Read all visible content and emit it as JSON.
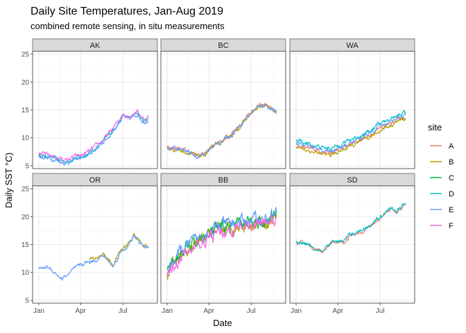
{
  "chart_data": {
    "type": "line",
    "title": "Daily Site Temperatures, Jan-Aug 2019",
    "subtitle": "combined remote sensing, in situ measurements",
    "xlabel": "Date",
    "ylabel": "Daily SST °C)",
    "x_range": [
      "2019-01-01",
      "2019-08-31"
    ],
    "ylim": [
      4.5,
      25.5
    ],
    "y_ticks": [
      5,
      10,
      15,
      20,
      25
    ],
    "x_ticks": [
      {
        "label": "Jan",
        "date": "2019-01-01"
      },
      {
        "label": "Apr",
        "date": "2019-04-01"
      },
      {
        "label": "Jul",
        "date": "2019-07-01"
      }
    ],
    "grid": true,
    "legend": {
      "title": "site",
      "position": "right",
      "entries": [
        {
          "name": "A",
          "color": "#F8766D"
        },
        {
          "name": "B",
          "color": "#B79F00"
        },
        {
          "name": "C",
          "color": "#00BA38"
        },
        {
          "name": "D",
          "color": "#00BFC4"
        },
        {
          "name": "E",
          "color": "#619CFF"
        },
        {
          "name": "F",
          "color": "#F564E3"
        }
      ]
    },
    "facets": [
      {
        "label": "AK",
        "anchors": [
          [
            "2019-01-01",
            6.9
          ],
          [
            "2019-01-25",
            6.6
          ],
          [
            "2019-02-15",
            6.0
          ],
          [
            "2019-03-01",
            5.7
          ],
          [
            "2019-03-20",
            6.4
          ],
          [
            "2019-04-05",
            6.6
          ],
          [
            "2019-04-25",
            7.6
          ],
          [
            "2019-05-15",
            9.0
          ],
          [
            "2019-06-01",
            10.5
          ],
          [
            "2019-06-15",
            12.0
          ],
          [
            "2019-07-01",
            14.0
          ],
          [
            "2019-07-15",
            13.5
          ],
          [
            "2019-08-01",
            14.5
          ],
          [
            "2019-08-15",
            13.0
          ],
          [
            "2019-08-25",
            13.5
          ]
        ],
        "series": [
          {
            "name": "D",
            "start": "2019-01-01",
            "end": "2019-08-25",
            "offset": 0.0
          },
          {
            "name": "E",
            "start": "2019-01-01",
            "end": "2019-08-25",
            "offset": -0.2
          },
          {
            "name": "F",
            "start": "2019-01-01",
            "end": "2019-08-25",
            "offset": 0.3
          }
        ]
      },
      {
        "label": "BC",
        "anchors": [
          [
            "2019-01-01",
            8.2
          ],
          [
            "2019-01-25",
            8.0
          ],
          [
            "2019-02-15",
            7.5
          ],
          [
            "2019-03-05",
            6.7
          ],
          [
            "2019-03-25",
            7.2
          ],
          [
            "2019-04-10",
            8.5
          ],
          [
            "2019-05-01",
            9.5
          ],
          [
            "2019-05-25",
            11.0
          ],
          [
            "2019-06-15",
            13.0
          ],
          [
            "2019-07-01",
            14.5
          ],
          [
            "2019-07-15",
            15.5
          ],
          [
            "2019-08-01",
            16.0
          ],
          [
            "2019-08-15",
            15.0
          ],
          [
            "2019-08-25",
            14.5
          ]
        ],
        "series": [
          {
            "name": "A",
            "start": "2019-01-01",
            "end": "2019-08-25",
            "offset": 0.15
          },
          {
            "name": "B",
            "start": "2019-01-01",
            "end": "2019-08-25",
            "offset": -0.15
          },
          {
            "name": "E",
            "start": "2019-01-01",
            "end": "2019-08-25",
            "offset": 0.0
          }
        ]
      },
      {
        "label": "WA",
        "anchors": [
          [
            "2019-01-01",
            8.8
          ],
          [
            "2019-01-20",
            8.3
          ],
          [
            "2019-02-15",
            7.7
          ],
          [
            "2019-03-05",
            7.3
          ],
          [
            "2019-03-25",
            7.5
          ],
          [
            "2019-04-10",
            8.2
          ],
          [
            "2019-05-01",
            9.0
          ],
          [
            "2019-05-25",
            9.8
          ],
          [
            "2019-06-15",
            10.8
          ],
          [
            "2019-07-01",
            11.8
          ],
          [
            "2019-07-20",
            12.5
          ],
          [
            "2019-08-05",
            13.3
          ],
          [
            "2019-08-25",
            13.8
          ]
        ],
        "series": [
          {
            "name": "A",
            "start": "2019-01-01",
            "end": "2019-08-25",
            "offset": 0.0
          },
          {
            "name": "B",
            "start": "2019-01-01",
            "end": "2019-08-25",
            "offset": -0.4
          },
          {
            "name": "D",
            "start": "2019-01-01",
            "end": "2019-08-25",
            "offset": 0.8
          },
          {
            "name": "E",
            "start": "2019-01-01",
            "end": "2019-08-25",
            "offset": 0.3
          }
        ]
      },
      {
        "label": "OR",
        "anchors": [
          [
            "2019-01-01",
            10.7
          ],
          [
            "2019-01-20",
            11.0
          ],
          [
            "2019-02-05",
            10.0
          ],
          [
            "2019-02-20",
            8.8
          ],
          [
            "2019-03-10",
            10.0
          ],
          [
            "2019-03-25",
            11.0
          ],
          [
            "2019-04-10",
            11.7
          ],
          [
            "2019-05-01",
            12.2
          ],
          [
            "2019-05-20",
            13.0
          ],
          [
            "2019-06-10",
            11.0
          ],
          [
            "2019-06-25",
            13.5
          ],
          [
            "2019-07-15",
            15.0
          ],
          [
            "2019-07-25",
            16.5
          ],
          [
            "2019-08-10",
            15.0
          ],
          [
            "2019-08-25",
            14.2
          ]
        ],
        "series": [
          {
            "name": "B",
            "start": "2019-04-20",
            "end": "2019-08-25",
            "offset": 0.3
          },
          {
            "name": "E",
            "start": "2019-01-01",
            "end": "2019-08-25",
            "offset": 0.0
          }
        ]
      },
      {
        "label": "BB",
        "anchors": [
          [
            "2019-01-01",
            9.5
          ],
          [
            "2019-01-15",
            11.5
          ],
          [
            "2019-02-01",
            13.0
          ],
          [
            "2019-02-15",
            14.0
          ],
          [
            "2019-03-01",
            14.5
          ],
          [
            "2019-03-20",
            16.0
          ],
          [
            "2019-04-10",
            16.8
          ],
          [
            "2019-05-01",
            17.5
          ],
          [
            "2019-05-20",
            17.8
          ],
          [
            "2019-06-10",
            18.2
          ],
          [
            "2019-07-01",
            18.5
          ],
          [
            "2019-07-15",
            19.0
          ],
          [
            "2019-08-01",
            18.5
          ],
          [
            "2019-08-25",
            20.0
          ]
        ],
        "series": [
          {
            "name": "B",
            "start": "2019-01-01",
            "end": "2019-08-25",
            "offset": 0.2
          },
          {
            "name": "C",
            "start": "2019-01-01",
            "end": "2019-08-25",
            "offset": 0.5
          },
          {
            "name": "E",
            "start": "2019-01-01",
            "end": "2019-08-25",
            "offset": 0.9
          },
          {
            "name": "F",
            "start": "2019-01-01",
            "end": "2019-08-25",
            "offset": -0.3
          }
        ]
      },
      {
        "label": "SD",
        "anchors": [
          [
            "2019-01-01",
            15.3
          ],
          [
            "2019-01-20",
            15.5
          ],
          [
            "2019-02-10",
            14.5
          ],
          [
            "2019-03-01",
            13.8
          ],
          [
            "2019-03-20",
            15.5
          ],
          [
            "2019-04-10",
            15.5
          ],
          [
            "2019-05-01",
            17.0
          ],
          [
            "2019-05-20",
            17.5
          ],
          [
            "2019-06-10",
            18.5
          ],
          [
            "2019-07-01",
            20.0
          ],
          [
            "2019-07-20",
            21.5
          ],
          [
            "2019-08-05",
            21.0
          ],
          [
            "2019-08-25",
            22.3
          ]
        ],
        "series": [
          {
            "name": "A",
            "start": "2019-01-01",
            "end": "2019-08-25",
            "offset": -0.2
          },
          {
            "name": "D",
            "start": "2019-01-01",
            "end": "2019-08-25",
            "offset": 0.0
          }
        ]
      }
    ]
  }
}
